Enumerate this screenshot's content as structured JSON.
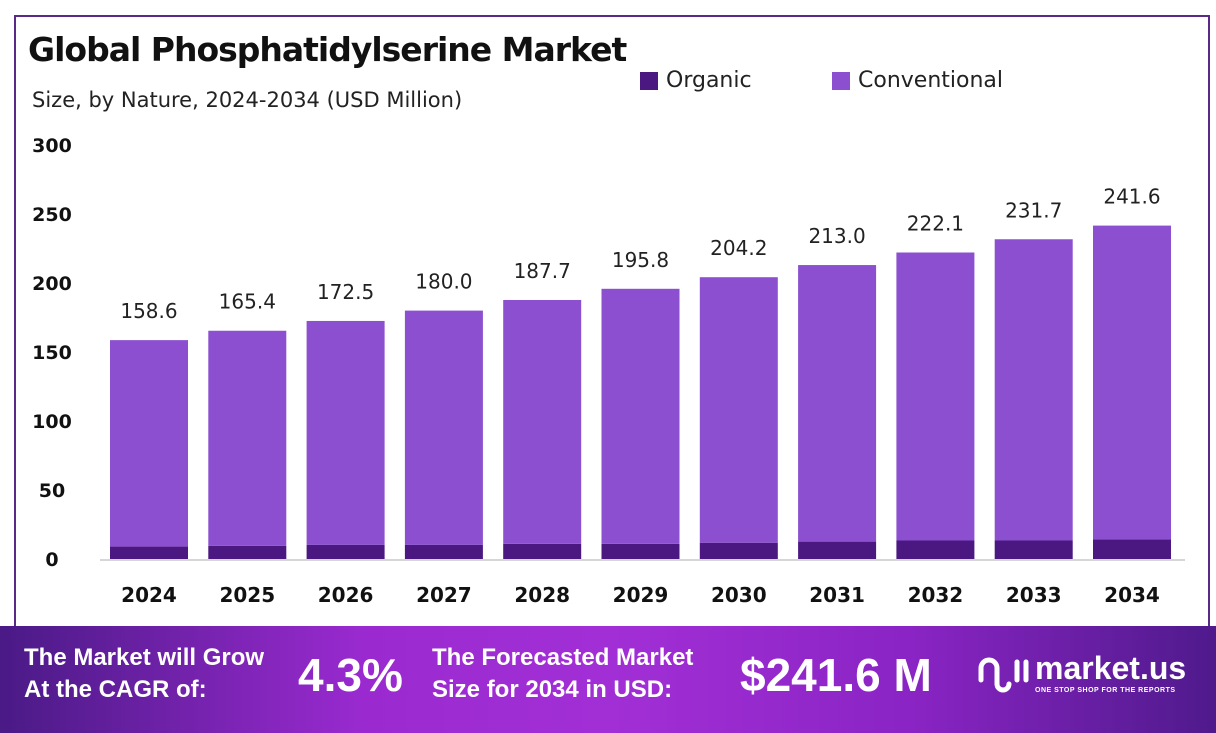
{
  "title": "Global Phosphatidylserine Market",
  "subtitle": "Size, by Nature, 2024-2034 (USD Million)",
  "colors": {
    "organic": "#4b1781",
    "conventional": "#8b4fcf",
    "border": "#5a2a86"
  },
  "chart_data": {
    "type": "bar",
    "stacked": true,
    "title": "Global Phosphatidylserine Market",
    "subtitle": "Size, by Nature, 2024-2034 (USD Million)",
    "categories": [
      "2024",
      "2025",
      "2026",
      "2027",
      "2028",
      "2029",
      "2030",
      "2031",
      "2032",
      "2033",
      "2034"
    ],
    "series": [
      {
        "name": "Organic",
        "values": [
          9.0,
          9.5,
          10.2,
          10.2,
          11.0,
          11.0,
          11.8,
          12.6,
          13.4,
          13.4,
          14.2
        ]
      },
      {
        "name": "Conventional",
        "values": [
          149.6,
          155.9,
          162.3,
          169.8,
          176.7,
          184.8,
          192.4,
          200.4,
          208.7,
          218.3,
          227.4
        ]
      }
    ],
    "totals": [
      "158.6",
      "165.4",
      "172.5",
      "180.0",
      "187.7",
      "195.8",
      "204.2",
      "213.0",
      "222.1",
      "231.7",
      "241.6"
    ],
    "ylim": [
      0,
      300
    ],
    "yticks": [
      "0",
      "50",
      "100",
      "150",
      "200",
      "250",
      "300"
    ],
    "grid": false,
    "legend": "top-right"
  },
  "banner": {
    "cagr_label_1": "The Market will Grow",
    "cagr_label_2": "At the CAGR of:",
    "cagr_value": "4.3%",
    "forecast_label_1": "The Forecasted Market",
    "forecast_label_2": "Size for 2034 in USD:",
    "forecast_value": "$241.6 M",
    "logo_name": "market.us",
    "logo_tagline": "ONE STOP SHOP FOR THE REPORTS"
  }
}
